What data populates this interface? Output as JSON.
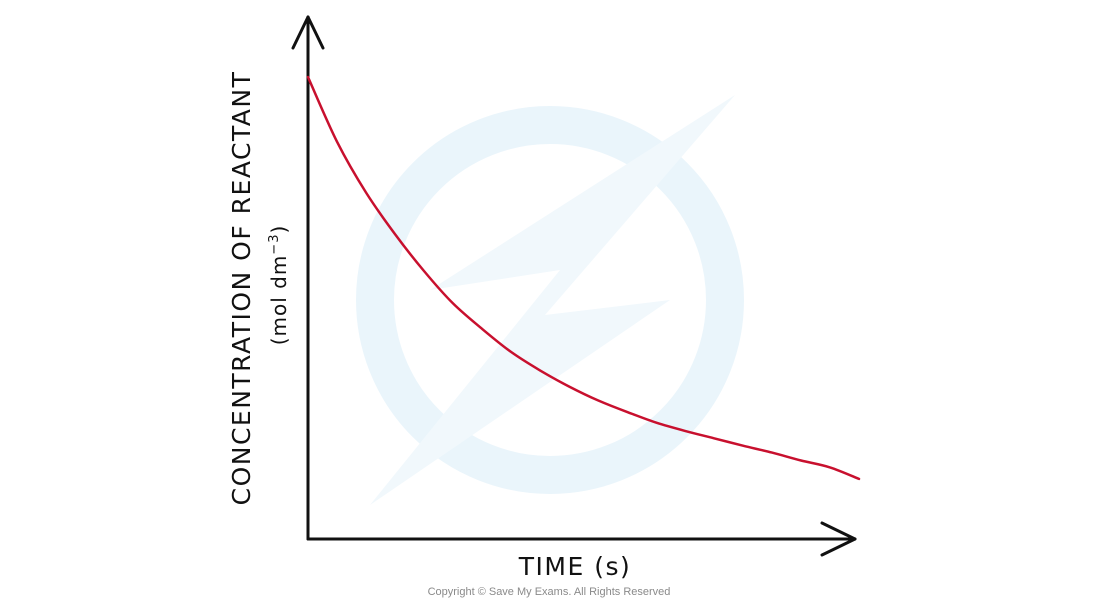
{
  "chart_data": {
    "type": "line",
    "title": "",
    "xlabel": "TIME (s)",
    "ylabel": "CONCENTRATION OF REACTANT",
    "ylabel_units": "(mol dm",
    "ylabel_units_exp": "−3",
    "ylabel_units_close": ")",
    "x_ticks": [],
    "y_ticks": [],
    "grid": false,
    "legend": "none",
    "xlim": [
      0,
      100
    ],
    "ylim": [
      0,
      100
    ],
    "series": [
      {
        "color": "#c8102e",
        "x": [
          0,
          5,
          10,
          15,
          20,
          25,
          30,
          35,
          40,
          45,
          50,
          55,
          60,
          65,
          70,
          75,
          80,
          85,
          90,
          95
        ],
        "y": [
          100,
          86,
          75,
          66,
          58,
          51,
          45.5,
          40.5,
          36.5,
          33,
          30,
          27.5,
          25.2,
          23.4,
          21.8,
          20.2,
          18.7,
          17,
          15.5,
          13
        ]
      }
    ]
  },
  "watermark": "save-my-exams-logo",
  "copyright": "Copyright © Save My Exams. All Rights Reserved",
  "colors": {
    "curve": "#c8102e",
    "axes": "#111111",
    "watermark": "#eaf5fb"
  }
}
